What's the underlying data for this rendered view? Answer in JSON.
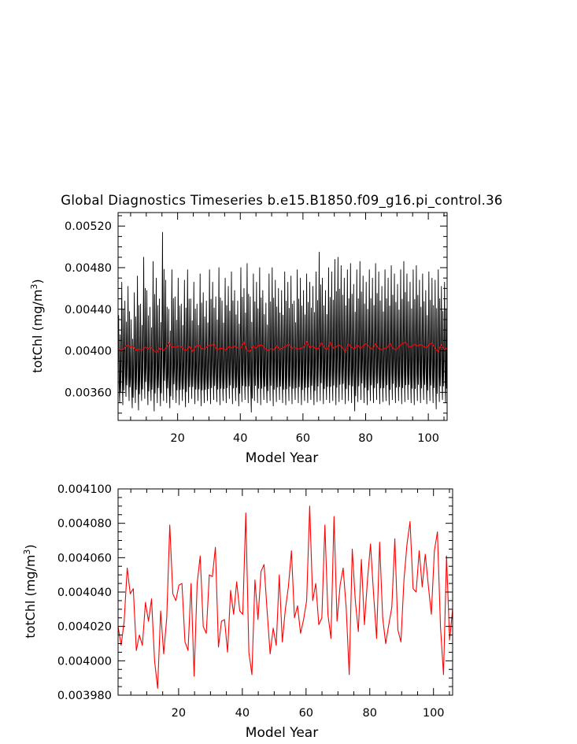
{
  "figure_title": "Global Diagnostics Timeseries b.e15.B1850.f09_g16.pi_control.36",
  "chart_data": [
    {
      "type": "line",
      "xlabel": "Model Year",
      "ylabel": "totChl (mg/m",
      "ylabel_sup": "3",
      "ylabel_close": ")",
      "xlim": [
        1,
        106
      ],
      "ylim": [
        0.00333,
        0.00533
      ],
      "xticks": [
        20,
        40,
        60,
        80,
        100
      ],
      "xtick_labels": [
        "20",
        "40",
        "60",
        "80",
        "100"
      ],
      "yticks": [
        0.0036,
        0.004,
        0.0044,
        0.0048,
        0.0052
      ],
      "ytick_labels": [
        "0.00360",
        "0.00400",
        "0.00440",
        "0.00480",
        "0.00520"
      ],
      "grid": false,
      "series": [
        {
          "color": "#000000",
          "kind": "monthly",
          "peaks": [
            0.00434,
            0.00466,
            0.00448,
            0.00462,
            0.0043,
            0.00456,
            0.00472,
            0.00445,
            0.0049,
            0.00458,
            0.00442,
            0.00486,
            0.0047,
            0.0045,
            0.00514,
            0.00468,
            0.0044,
            0.00478,
            0.00452,
            0.0047,
            0.00445,
            0.00468,
            0.00478,
            0.0045,
            0.00466,
            0.00445,
            0.00474,
            0.00456,
            0.00448,
            0.00478,
            0.00466,
            0.00452,
            0.0048,
            0.00448,
            0.0047,
            0.00462,
            0.00476,
            0.00458,
            0.00448,
            0.0048,
            0.0046,
            0.00484,
            0.00452,
            0.00474,
            0.00466,
            0.0048,
            0.00458,
            0.00446,
            0.00474,
            0.0048,
            0.00468,
            0.0046,
            0.00458,
            0.00476,
            0.00466,
            0.00472,
            0.00448,
            0.00478,
            0.0047,
            0.00458,
            0.00474,
            0.00466,
            0.00462,
            0.00476,
            0.00495,
            0.0047,
            0.00458,
            0.0048,
            0.00476,
            0.00488,
            0.0049,
            0.00482,
            0.0047,
            0.00478,
            0.00484,
            0.00464,
            0.00478,
            0.00486,
            0.00472,
            0.00466,
            0.00478,
            0.0047,
            0.00484,
            0.00476,
            0.00462,
            0.00478,
            0.0047,
            0.00482,
            0.00474,
            0.00464,
            0.00478,
            0.00486,
            0.00474,
            0.00466,
            0.00478,
            0.00482,
            0.00468,
            0.00474,
            0.00458,
            0.00476,
            0.0047,
            0.00468,
            0.00478,
            0.00462,
            0.00466,
            0.00478
          ],
          "troughs": [
            0.0035,
            0.00348,
            0.00356,
            0.00352,
            0.00345,
            0.0035,
            0.00343,
            0.00352,
            0.00354,
            0.00348,
            0.00352,
            0.00342,
            0.0035,
            0.00347,
            0.00352,
            0.0035,
            0.00345,
            0.00353,
            0.0035,
            0.00348,
            0.00352,
            0.00346,
            0.0035,
            0.00354,
            0.00349,
            0.00352,
            0.00347,
            0.0035,
            0.00352,
            0.00349,
            0.00353,
            0.00351,
            0.00348,
            0.00352,
            0.0035,
            0.00354,
            0.00349,
            0.00352,
            0.00347,
            0.00351,
            0.00353,
            0.0035,
            0.00341,
            0.00352,
            0.0035,
            0.00348,
            0.00353,
            0.0035,
            0.00352,
            0.00347,
            0.00351,
            0.00353,
            0.0035,
            0.00348,
            0.00352,
            0.00349,
            0.00353,
            0.0035,
            0.00348,
            0.00352,
            0.0035,
            0.00353,
            0.00348,
            0.00351,
            0.00352,
            0.00349,
            0.00353,
            0.0035,
            0.00352,
            0.00348,
            0.00351,
            0.00353,
            0.00349,
            0.00352,
            0.0035,
            0.00342,
            0.00351,
            0.00353,
            0.0035,
            0.00348,
            0.00352,
            0.0035,
            0.00353,
            0.00349,
            0.00351,
            0.00352,
            0.00348,
            0.00353,
            0.0035,
            0.00352,
            0.00349,
            0.00351,
            0.00353,
            0.0035,
            0.00348,
            0.00352,
            0.0035,
            0.00353,
            0.00349,
            0.00352,
            0.0035,
            0.00344,
            0.00351,
            0.00353,
            0.0035,
            0.00352
          ]
        },
        {
          "color": "#ff0000",
          "kind": "annual",
          "values": [
            0.00402,
            0.004009,
            0.004023,
            0.004054,
            0.004039,
            0.004042,
            0.004006,
            0.004015,
            0.004009,
            0.004034,
            0.004023,
            0.004036,
            0.004,
            0.003984,
            0.004029,
            0.004004,
            0.004025,
            0.004079,
            0.004039,
            0.004035,
            0.004044,
            0.004045,
            0.004011,
            0.004006,
            0.004045,
            0.003991,
            0.004045,
            0.004061,
            0.00402,
            0.004016,
            0.00405,
            0.004049,
            0.004066,
            0.004008,
            0.004023,
            0.004024,
            0.004005,
            0.004041,
            0.004027,
            0.004046,
            0.004029,
            0.004027,
            0.004086,
            0.004005,
            0.003992,
            0.004047,
            0.004024,
            0.004052,
            0.004056,
            0.004029,
            0.004004,
            0.004019,
            0.004009,
            0.00405,
            0.004011,
            0.00403,
            0.004043,
            0.004064,
            0.004025,
            0.004032,
            0.004016,
            0.004024,
            0.004035,
            0.00409,
            0.004035,
            0.004045,
            0.004021,
            0.004025,
            0.004079,
            0.004027,
            0.004013,
            0.004084,
            0.004023,
            0.004044,
            0.004054,
            0.004031,
            0.003992,
            0.004065,
            0.004035,
            0.004017,
            0.004059,
            0.004021,
            0.004047,
            0.004068,
            0.004039,
            0.004013,
            0.004069,
            0.004025,
            0.00401,
            0.004021,
            0.004031,
            0.004071,
            0.004018,
            0.004011,
            0.004047,
            0.004068,
            0.004081,
            0.004042,
            0.00404,
            0.004064,
            0.004043,
            0.004062,
            0.004044,
            0.004027,
            0.004064,
            0.004075,
            0.00402,
            0.003992,
            0.004061,
            0.004012,
            0.00403
          ]
        }
      ]
    },
    {
      "type": "line",
      "xlabel": "Model Year",
      "ylabel": "totChl (mg/m",
      "ylabel_sup": "3",
      "ylabel_close": ")",
      "xlim": [
        1,
        106
      ],
      "ylim": [
        0.00398,
        0.0041
      ],
      "xticks": [
        20,
        40,
        60,
        80,
        100
      ],
      "xtick_labels": [
        "20",
        "40",
        "60",
        "80",
        "100"
      ],
      "yticks": [
        0.00398,
        0.004,
        0.00402,
        0.00404,
        0.00406,
        0.00408,
        0.0041
      ],
      "ytick_labels": [
        "0.003980",
        "0.004000",
        "0.004020",
        "0.004040",
        "0.004060",
        "0.004080",
        "0.004100"
      ],
      "grid": false,
      "series": [
        {
          "color": "#ff0000",
          "kind": "annual",
          "values": [
            0.00402,
            0.004009,
            0.004023,
            0.004054,
            0.004039,
            0.004042,
            0.004006,
            0.004015,
            0.004009,
            0.004034,
            0.004023,
            0.004036,
            0.004,
            0.003984,
            0.004029,
            0.004004,
            0.004025,
            0.004079,
            0.004039,
            0.004035,
            0.004044,
            0.004045,
            0.004011,
            0.004006,
            0.004045,
            0.003991,
            0.004045,
            0.004061,
            0.00402,
            0.004016,
            0.00405,
            0.004049,
            0.004066,
            0.004008,
            0.004023,
            0.004024,
            0.004005,
            0.004041,
            0.004027,
            0.004046,
            0.004029,
            0.004027,
            0.004086,
            0.004005,
            0.003992,
            0.004047,
            0.004024,
            0.004052,
            0.004056,
            0.004029,
            0.004004,
            0.004019,
            0.004009,
            0.00405,
            0.004011,
            0.00403,
            0.004043,
            0.004064,
            0.004025,
            0.004032,
            0.004016,
            0.004024,
            0.004035,
            0.00409,
            0.004035,
            0.004045,
            0.004021,
            0.004025,
            0.004079,
            0.004027,
            0.004013,
            0.004084,
            0.004023,
            0.004044,
            0.004054,
            0.004031,
            0.003992,
            0.004065,
            0.004035,
            0.004017,
            0.004059,
            0.004021,
            0.004047,
            0.004068,
            0.004039,
            0.004013,
            0.004069,
            0.004025,
            0.00401,
            0.004021,
            0.004031,
            0.004071,
            0.004018,
            0.004011,
            0.004047,
            0.004068,
            0.004081,
            0.004042,
            0.00404,
            0.004064,
            0.004043,
            0.004062,
            0.004044,
            0.004027,
            0.004064,
            0.004075,
            0.00402,
            0.003992,
            0.004061,
            0.004012,
            0.00403
          ]
        }
      ]
    }
  ]
}
